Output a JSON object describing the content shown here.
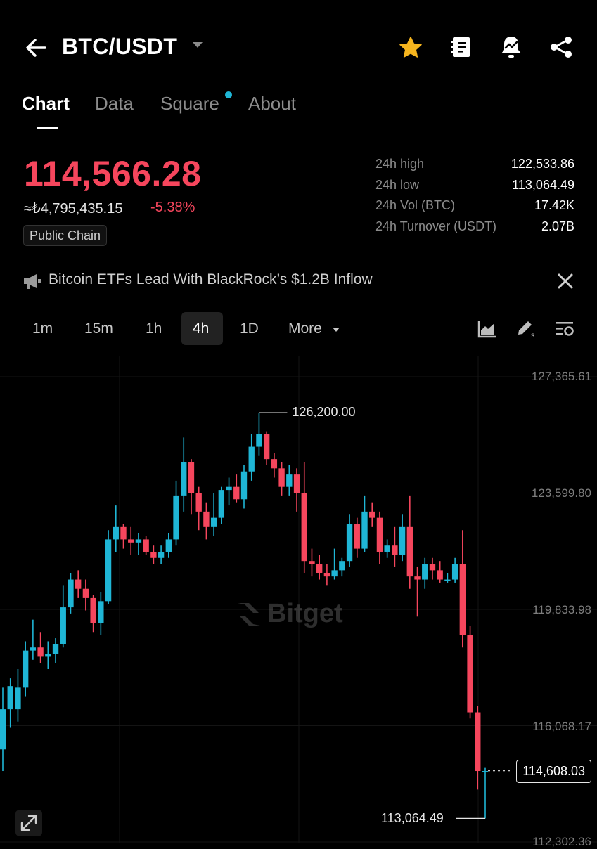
{
  "header": {
    "pair": "BTC/USDT",
    "icons": [
      "back-arrow-icon",
      "dropdown-caret-icon",
      "star-icon",
      "notebook-icon",
      "bell-alert-icon",
      "share-icon"
    ],
    "accent": "#f6b51e"
  },
  "tabs": [
    {
      "label": "Chart",
      "active": true
    },
    {
      "label": "Data",
      "active": false
    },
    {
      "label": "Square",
      "active": false,
      "badge": true
    },
    {
      "label": "About",
      "active": false
    }
  ],
  "ticker": {
    "price": "114,566.28",
    "fiat": "≈₺4,795,435.15",
    "change": "-5.38%",
    "tag": "Public Chain",
    "price_color": "#f6465d"
  },
  "stats": [
    {
      "label": "24h high",
      "value": "122,533.86"
    },
    {
      "label": "24h low",
      "value": "113,064.49"
    },
    {
      "label": "24h Vol (BTC)",
      "value": "17.42K"
    },
    {
      "label": "24h Turnover (USDT)",
      "value": "2.07B"
    }
  ],
  "news": {
    "text": "Bitcoin ETFs Lead With BlackRock’s $1.2B Inflow"
  },
  "timeframes": [
    {
      "label": "1m",
      "active": false
    },
    {
      "label": "15m",
      "active": false
    },
    {
      "label": "1h",
      "active": false
    },
    {
      "label": "4h",
      "active": true
    },
    {
      "label": "1D",
      "active": false
    },
    {
      "label": "More",
      "active": false
    }
  ],
  "chart_data": {
    "type": "candlestick",
    "watermark": "Bitget",
    "y_ticks": [
      "127,365.61",
      "123,599.80",
      "119,833.98",
      "116,068.17",
      "112,302.36"
    ],
    "ylim": [
      112302.36,
      127365.61
    ],
    "high_marker": "126,200.00",
    "low_marker": "113,064.49",
    "current_price": "114,608.03",
    "up_color": "#1fb6d6",
    "down_color": "#f6465d",
    "candles": [
      {
        "o": 115300,
        "h": 117300,
        "l": 114600,
        "c": 116600
      },
      {
        "o": 116600,
        "h": 117600,
        "l": 116000,
        "c": 117350
      },
      {
        "o": 116600,
        "h": 117900,
        "l": 116200,
        "c": 117300
      },
      {
        "o": 117300,
        "h": 118800,
        "l": 117000,
        "c": 118500
      },
      {
        "o": 118500,
        "h": 119500,
        "l": 118200,
        "c": 118600
      },
      {
        "o": 118600,
        "h": 119100,
        "l": 118100,
        "c": 118300
      },
      {
        "o": 118300,
        "h": 118800,
        "l": 117900,
        "c": 118400
      },
      {
        "o": 118400,
        "h": 118900,
        "l": 118100,
        "c": 118700
      },
      {
        "o": 118700,
        "h": 120600,
        "l": 118600,
        "c": 119900
      },
      {
        "o": 119900,
        "h": 121000,
        "l": 119700,
        "c": 120800
      },
      {
        "o": 120800,
        "h": 121100,
        "l": 120200,
        "c": 120500
      },
      {
        "o": 120500,
        "h": 120800,
        "l": 119800,
        "c": 120200
      },
      {
        "o": 120200,
        "h": 120300,
        "l": 119100,
        "c": 119400
      },
      {
        "o": 119400,
        "h": 120400,
        "l": 119000,
        "c": 120100
      },
      {
        "o": 120100,
        "h": 122400,
        "l": 120000,
        "c": 122100
      },
      {
        "o": 122100,
        "h": 123200,
        "l": 121700,
        "c": 122500
      },
      {
        "o": 122500,
        "h": 122600,
        "l": 121800,
        "c": 122100
      },
      {
        "o": 122100,
        "h": 122500,
        "l": 121600,
        "c": 122000
      },
      {
        "o": 122000,
        "h": 122300,
        "l": 121600,
        "c": 122100
      },
      {
        "o": 122100,
        "h": 122200,
        "l": 121600,
        "c": 121700
      },
      {
        "o": 121700,
        "h": 121900,
        "l": 121300,
        "c": 121500
      },
      {
        "o": 121500,
        "h": 121900,
        "l": 121300,
        "c": 121700
      },
      {
        "o": 121700,
        "h": 122300,
        "l": 121500,
        "c": 122100
      },
      {
        "o": 122100,
        "h": 124000,
        "l": 121900,
        "c": 123500
      },
      {
        "o": 123500,
        "h": 125400,
        "l": 123000,
        "c": 124600
      },
      {
        "o": 124600,
        "h": 124700,
        "l": 122900,
        "c": 123600
      },
      {
        "o": 123600,
        "h": 123800,
        "l": 122400,
        "c": 123000
      },
      {
        "o": 123000,
        "h": 123300,
        "l": 122100,
        "c": 122500
      },
      {
        "o": 122500,
        "h": 123600,
        "l": 122200,
        "c": 122800
      },
      {
        "o": 122800,
        "h": 123800,
        "l": 122600,
        "c": 123700
      },
      {
        "o": 123700,
        "h": 124100,
        "l": 123200,
        "c": 123800
      },
      {
        "o": 123800,
        "h": 124200,
        "l": 123300,
        "c": 123400
      },
      {
        "o": 123400,
        "h": 124500,
        "l": 123100,
        "c": 124300
      },
      {
        "o": 124300,
        "h": 125500,
        "l": 124000,
        "c": 125100
      },
      {
        "o": 125100,
        "h": 126200,
        "l": 124800,
        "c": 125500
      },
      {
        "o": 125500,
        "h": 125600,
        "l": 124500,
        "c": 124700
      },
      {
        "o": 124700,
        "h": 124900,
        "l": 124100,
        "c": 124400
      },
      {
        "o": 124400,
        "h": 124600,
        "l": 123500,
        "c": 123800
      },
      {
        "o": 123800,
        "h": 124500,
        "l": 123500,
        "c": 124200
      },
      {
        "o": 124200,
        "h": 124400,
        "l": 123000,
        "c": 123600
      },
      {
        "o": 123600,
        "h": 124600,
        "l": 121000,
        "c": 121400
      },
      {
        "o": 121400,
        "h": 121800,
        "l": 120900,
        "c": 121300
      },
      {
        "o": 121300,
        "h": 121600,
        "l": 120800,
        "c": 121000
      },
      {
        "o": 121000,
        "h": 121300,
        "l": 120600,
        "c": 120900
      },
      {
        "o": 120900,
        "h": 121800,
        "l": 120800,
        "c": 121100
      },
      {
        "o": 121100,
        "h": 121500,
        "l": 120900,
        "c": 121400
      },
      {
        "o": 121400,
        "h": 122900,
        "l": 121200,
        "c": 122600
      },
      {
        "o": 122600,
        "h": 122800,
        "l": 121500,
        "c": 121800
      },
      {
        "o": 121800,
        "h": 123500,
        "l": 121700,
        "c": 123000
      },
      {
        "o": 123000,
        "h": 123300,
        "l": 122500,
        "c": 122800
      },
      {
        "o": 122800,
        "h": 123000,
        "l": 121300,
        "c": 121700
      },
      {
        "o": 121700,
        "h": 122100,
        "l": 121500,
        "c": 121900
      },
      {
        "o": 121900,
        "h": 122500,
        "l": 121200,
        "c": 121600
      },
      {
        "o": 121600,
        "h": 122900,
        "l": 121400,
        "c": 122500
      },
      {
        "o": 122500,
        "h": 123500,
        "l": 120500,
        "c": 120900
      },
      {
        "o": 120900,
        "h": 121200,
        "l": 119600,
        "c": 120800
      },
      {
        "o": 120800,
        "h": 121500,
        "l": 120500,
        "c": 121300
      },
      {
        "o": 121300,
        "h": 121500,
        "l": 120800,
        "c": 121100
      },
      {
        "o": 121100,
        "h": 121400,
        "l": 120700,
        "c": 120800
      },
      {
        "o": 120800,
        "h": 121000,
        "l": 120700,
        "c": 120800
      },
      {
        "o": 120800,
        "h": 121500,
        "l": 120700,
        "c": 121300
      },
      {
        "o": 121300,
        "h": 122400,
        "l": 118600,
        "c": 119000
      },
      {
        "o": 119000,
        "h": 119300,
        "l": 116300,
        "c": 116500
      },
      {
        "o": 116500,
        "h": 116700,
        "l": 114000,
        "c": 114600
      },
      {
        "o": 114600,
        "h": 114700,
        "l": 113064.49,
        "c": 114600
      }
    ]
  },
  "controls": {
    "expand_icon": "expand-icon"
  }
}
